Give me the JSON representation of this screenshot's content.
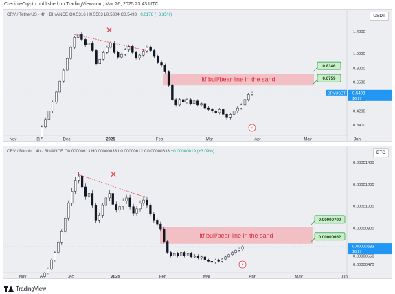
{
  "header": {
    "text": "CredibleCrypto published on TradingView.com, Mar 26, 2025 23:43 UTC"
  },
  "footer": {
    "brand": "TradingView"
  },
  "colors": {
    "candle": "#131722",
    "zone": "#f3b6bc",
    "zone_text": "#e0293a",
    "label_bg": "#c8efc8",
    "label_border": "#2e9b4d",
    "price_tag": "#2196f3",
    "trendline": "#e04552"
  },
  "chart_data": [
    {
      "type": "candlestick",
      "legend": {
        "pair": "CRV / TetherUS · 4h · BINANCE",
        "ohlc": "O0.5316  H0.5503  L0.5304  C0.5493",
        "change": "+0.0178 (+3.35%)"
      },
      "currency": "USDT",
      "yscale": "log",
      "ylim": [
        0.3,
        1.65
      ],
      "y_ticks": [
        1.4,
        1.0,
        0.8,
        0.65,
        0.5,
        0.42,
        0.34
      ],
      "y_tick_labels": [
        "1.4000",
        "1.0000",
        "0.8000",
        "0.6500",
        "0.5000",
        "0.4200",
        "0.3400"
      ],
      "x_labels": [
        "Nov",
        "Dec",
        "2025",
        "Feb",
        "Mar",
        "Apr",
        "May",
        "Jun"
      ],
      "series": [
        {
          "close": [
            0.24,
            0.26,
            0.28,
            0.33,
            0.37,
            0.42,
            0.48,
            0.56,
            0.66,
            0.78,
            0.93,
            1.1,
            1.28,
            1.35,
            1.24,
            1.14,
            1.18,
            1.05,
            0.86,
            0.92,
            1.02,
            1.1,
            1.18,
            1.02,
            0.95,
            0.99,
            1.06,
            1.12,
            1.02,
            0.94,
            0.98,
            1.04,
            1.1,
            1.05,
            0.96,
            0.88,
            0.84,
            0.76,
            0.62,
            0.5,
            0.46,
            0.5,
            0.48,
            0.5,
            0.47,
            0.49,
            0.46,
            0.47,
            0.44,
            0.43,
            0.42,
            0.41,
            0.43,
            0.4,
            0.38,
            0.4,
            0.42,
            0.44,
            0.46,
            0.5,
            0.54,
            0.5493
          ]
        }
      ],
      "zone": {
        "label": "ltf bull/bear line in the sand",
        "top": 0.74,
        "bottom": 0.62
      },
      "annotations": [
        "0.8346",
        "0.6759"
      ],
      "price_tag": {
        "label": "CRVUSDT",
        "value": "0.5493",
        "timer": "16:27"
      },
      "marker": "✕"
    },
    {
      "type": "candlestick",
      "legend": {
        "pair": "CRV / Bitcoin · 4h · BINANCE",
        "ohlc": "O0.00000613  H0.00000633  L0.00000612  C0.00000633",
        "change": "+0.00000019 (+3.09%)"
      },
      "currency": "BTC",
      "yscale": "linear",
      "ylim": [
        4.2e-06,
        1.45e-05
      ],
      "y_ticks": [
        1.4e-05,
        1.2e-05,
        1e-05,
        8e-06,
        6.5e-06,
        5.5e-06,
        4.7e-06
      ],
      "y_tick_labels": [
        "0.00001400",
        "0.00001200",
        "0.00001000",
        "0.00000800",
        "0.00000650",
        "0.00000550",
        "0.00000470"
      ],
      "x_labels": [
        "Nov",
        "Dec",
        "2025",
        "Feb",
        "Mar",
        "Apr",
        "May",
        "Jun"
      ],
      "series": [
        {
          "close": [
            3.6e-06,
            3.9e-06,
            4.3e-06,
            5.1e-06,
            5.8e-06,
            6.7e-06,
            7.7e-06,
            8.9e-06,
            1.03e-05,
            1.14e-05,
            1.24e-05,
            1.28e-05,
            1.18e-05,
            1.09e-05,
            1.12e-05,
            1.01e-05,
            8.7e-06,
            9.2e-06,
            1.01e-05,
            1.08e-05,
            1.12e-05,
            1.02e-05,
            9.7e-06,
            1e-05,
            1.05e-05,
            1.08e-05,
            1e-05,
            9.4e-06,
            9.8e-06,
            1.03e-05,
            1.06e-05,
            1.01e-05,
            9.3e-06,
            8.7e-06,
            8.4e-06,
            7.9e-06,
            6.8e-06,
            5.8e-06,
            5.5e-06,
            5.7e-06,
            5.5e-06,
            5.8e-06,
            5.5e-06,
            5.7e-06,
            5.4e-06,
            5.5e-06,
            5.3e-06,
            5.4e-06,
            5.1e-06,
            5e-06,
            4.9e-06,
            5.1e-06,
            5e-06,
            5.2e-06,
            5.4e-06,
            5.6e-06,
            5.8e-06,
            6e-06,
            6.1e-06,
            6.33e-06
          ]
        }
      ],
      "zone": {
        "label": "ltf bull/bear line in the sand",
        "top": 8.1e-06,
        "bottom": 6.6e-06
      },
      "annotations": [
        "0.00000790",
        "0.00000662"
      ],
      "price_tag": {
        "value": "0.00000633",
        "timer": "16:27"
      },
      "marker": "✕"
    }
  ]
}
